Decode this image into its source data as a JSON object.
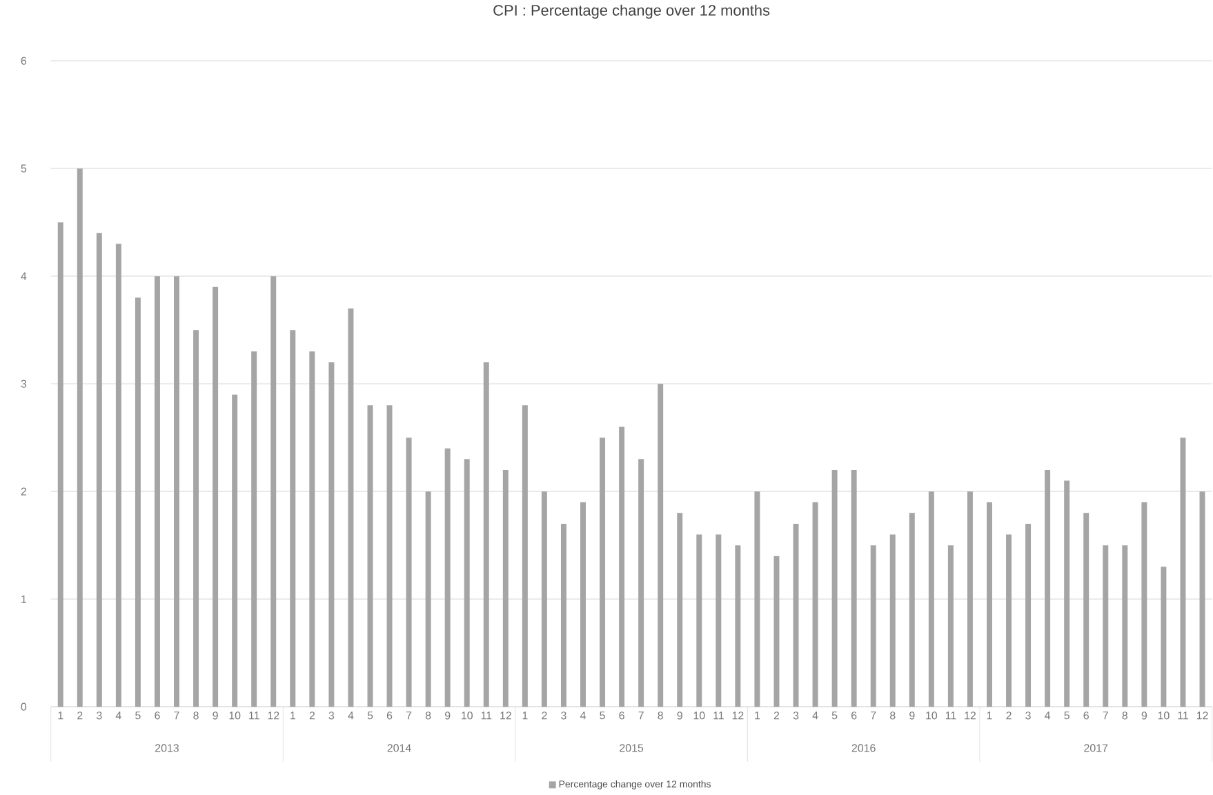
{
  "chart_data": {
    "type": "bar",
    "title": "CPI : Percentage change over 12 months",
    "categories": [
      "1",
      "2",
      "3",
      "4",
      "5",
      "6",
      "7",
      "8",
      "9",
      "10",
      "11",
      "12",
      "1",
      "2",
      "3",
      "4",
      "5",
      "6",
      "7",
      "8",
      "9",
      "10",
      "11",
      "12",
      "1",
      "2",
      "3",
      "4",
      "5",
      "6",
      "7",
      "8",
      "9",
      "10",
      "11",
      "12",
      "1",
      "2",
      "3",
      "4",
      "5",
      "6",
      "7",
      "8",
      "9",
      "10",
      "11",
      "12",
      "1",
      "2",
      "3",
      "4",
      "5",
      "6",
      "7",
      "8",
      "9",
      "10",
      "11",
      "12"
    ],
    "series": [
      {
        "name": "Percentage change over 12 months",
        "color": "#a5a5a5",
        "values": [
          4.5,
          5.0,
          4.4,
          4.3,
          3.8,
          4.0,
          4.0,
          3.5,
          3.9,
          2.9,
          3.3,
          4.0,
          3.5,
          3.3,
          3.2,
          3.7,
          2.8,
          2.8,
          2.5,
          2.0,
          2.4,
          2.3,
          3.2,
          2.2,
          2.8,
          2.0,
          1.7,
          1.9,
          2.5,
          2.6,
          2.3,
          3.0,
          1.8,
          1.6,
          1.6,
          1.5,
          2.0,
          1.4,
          1.7,
          1.9,
          2.2,
          2.2,
          1.5,
          1.6,
          1.8,
          2.0,
          1.5,
          2.0,
          1.9,
          1.6,
          1.7,
          2.2,
          2.1,
          1.8,
          1.5,
          1.5,
          1.9,
          1.3,
          2.5,
          2.0
        ]
      }
    ],
    "annotations": [
      "2013",
      "2014",
      "2015",
      "2016",
      "2017"
    ],
    "ylim": [
      0,
      6
    ],
    "yticks": [
      0,
      1,
      2,
      3,
      4,
      5,
      6
    ],
    "grid": "y",
    "legend": "bottom"
  }
}
